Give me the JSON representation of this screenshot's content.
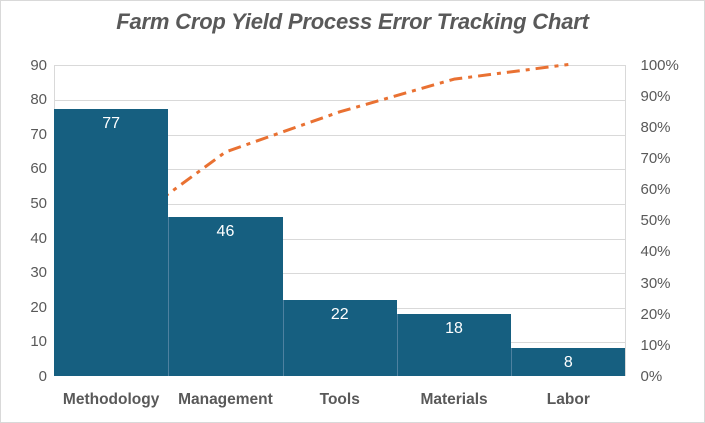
{
  "chart_data": {
    "type": "pareto",
    "title": "Farm Crop Yield Process Error Tracking Chart",
    "categories": [
      "Methodology",
      "Management",
      "Tools",
      "Materials",
      "Labor"
    ],
    "series": [
      {
        "name": "error-count-bars",
        "type": "bar",
        "values": [
          77,
          46,
          22,
          18,
          8
        ]
      },
      {
        "name": "cumulative-percent-line",
        "type": "line",
        "values": [
          45.0,
          71.9,
          84.8,
          95.3,
          100.0
        ]
      }
    ],
    "left_axis": {
      "min": 0,
      "max": 90,
      "step": 10,
      "ticks": [
        "90",
        "80",
        "70",
        "60",
        "50",
        "40",
        "30",
        "20",
        "10",
        "0"
      ]
    },
    "right_axis": {
      "min": 0,
      "max": 100,
      "step": 10,
      "ticks": [
        "100%",
        "90%",
        "80%",
        "70%",
        "60%",
        "50%",
        "40%",
        "30%",
        "20%",
        "10%",
        "0%"
      ]
    },
    "grid": "horizontal",
    "legend": "none",
    "colors": {
      "bar": "#165F80",
      "bar_separator": "#4E81A0",
      "line": "#E97132",
      "gridline": "#D9D9D9",
      "axis_text": "#595959",
      "bar_label": "#FFFFFF",
      "title": "#595959"
    }
  }
}
